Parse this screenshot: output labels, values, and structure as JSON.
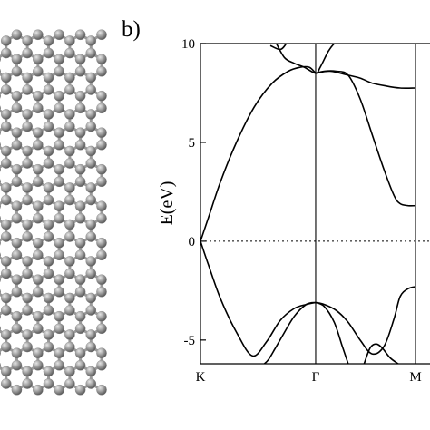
{
  "panel_label": "b)",
  "molecule": {
    "atom_color": "#8c8c8c",
    "bond_color": "#999999"
  },
  "chart_data": {
    "type": "line",
    "title": "",
    "xlabel": "",
    "ylabel": "E(eV)",
    "ylim": [
      -6.2,
      10
    ],
    "xlim": [
      0,
      1.13
    ],
    "x_ticks": [
      {
        "label": "K",
        "value": 0
      },
      {
        "label": "Γ",
        "value": 0.577
      },
      {
        "label": "M",
        "value": 1.077
      }
    ],
    "y_ticks": [
      {
        "label": "10",
        "value": 10
      },
      {
        "label": "5",
        "value": 5
      },
      {
        "label": "0",
        "value": 0
      },
      {
        "label": "-5",
        "value": -5
      }
    ],
    "fermi_level": 0,
    "grid": false,
    "series": [
      {
        "x": [
          0,
          0.04,
          0.1,
          0.18,
          0.27,
          0.36,
          0.44,
          0.5,
          0.545,
          0.577
        ],
        "y": [
          0,
          1.2,
          3.0,
          5.0,
          6.8,
          8.0,
          8.6,
          8.8,
          8.8,
          8.5
        ]
      },
      {
        "x": [
          0.577,
          0.62,
          0.68,
          0.74,
          0.8,
          0.86,
          0.92,
          0.97,
          1.0,
          1.04,
          1.077
        ],
        "y": [
          8.5,
          8.6,
          8.6,
          8.4,
          7.2,
          5.4,
          3.6,
          2.3,
          1.9,
          1.8,
          1.8
        ]
      },
      {
        "x": [
          0.577,
          0.65,
          0.74,
          0.8,
          0.86,
          0.93,
          1.0,
          1.077
        ],
        "y": [
          8.5,
          8.6,
          8.4,
          8.25,
          8.0,
          7.85,
          7.75,
          7.75
        ]
      },
      {
        "x": [
          0.37,
          0.42,
          0.47,
          0.52,
          0.577,
          0.6,
          0.64,
          0.67,
          0.71
        ],
        "y": [
          10.2,
          9.3,
          9.0,
          8.8,
          8.5,
          8.8,
          9.6,
          10.0,
          10.3
        ]
      },
      {
        "x": [
          0.35,
          0.4,
          0.43,
          0.45
        ],
        "y": [
          9.9,
          9.7,
          10.0,
          10.3
        ]
      },
      {
        "x": [
          0,
          0.04,
          0.1,
          0.18,
          0.26,
          0.33,
          0.4,
          0.47,
          0.53,
          0.577
        ],
        "y": [
          0,
          -1.2,
          -2.9,
          -4.6,
          -5.8,
          -5.1,
          -4.0,
          -3.4,
          -3.2,
          -3.1
        ]
      },
      {
        "x": [
          0.577,
          0.62,
          0.68,
          0.74,
          0.8,
          0.86,
          0.92,
          0.97,
          1.0,
          1.04,
          1.077
        ],
        "y": [
          -3.1,
          -3.2,
          -3.5,
          -4.1,
          -5.0,
          -5.7,
          -5.3,
          -3.9,
          -2.8,
          -2.4,
          -2.3
        ]
      },
      {
        "x": [
          0.577,
          0.53,
          0.47,
          0.41,
          0.37,
          0.34,
          0.32
        ],
        "y": [
          -3.1,
          -3.2,
          -3.8,
          -4.8,
          -5.5,
          -6.0,
          -6.2
        ]
      },
      {
        "x": [
          0.577,
          0.62,
          0.67,
          0.71,
          0.74
        ],
        "y": [
          -3.1,
          -3.3,
          -4.1,
          -5.3,
          -6.2
        ]
      },
      {
        "x": [
          0.82,
          0.85,
          0.88,
          0.91,
          0.95,
          0.99
        ],
        "y": [
          -6.2,
          -5.4,
          -5.2,
          -5.4,
          -5.9,
          -6.2
        ]
      }
    ]
  }
}
